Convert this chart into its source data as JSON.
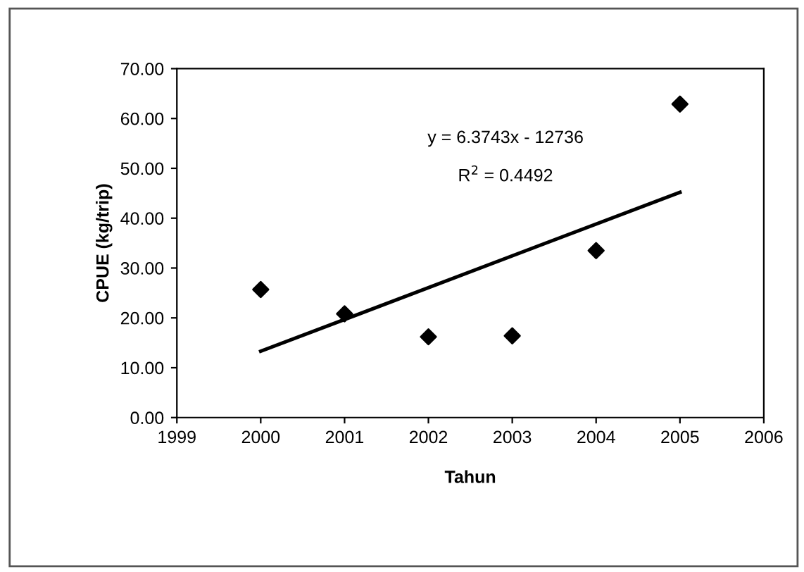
{
  "chart_data": {
    "type": "scatter",
    "xlabel": "Tahun",
    "ylabel": "CPUE (kg/trip)",
    "annotations": [
      "y = 6.3743x - 12736",
      "R$^{2}$ = 0.4492"
    ],
    "xlim": [
      1999,
      2006
    ],
    "xticks": [
      1999,
      2000,
      2001,
      2002,
      2003,
      2004,
      2005,
      2006
    ],
    "ylim": [
      0,
      70
    ],
    "yticks": [
      {
        "value": 0,
        "label": "0.00"
      },
      {
        "value": 10,
        "label": "10.00"
      },
      {
        "value": 20,
        "label": "20.00"
      },
      {
        "value": 30,
        "label": "30.00"
      },
      {
        "value": 40,
        "label": "40.00"
      },
      {
        "value": 50,
        "label": "50.00"
      },
      {
        "value": 60,
        "label": "60.00"
      },
      {
        "value": 70,
        "label": "70.00"
      }
    ],
    "grid": false,
    "legend": false,
    "series": [
      {
        "color": "#000000",
        "marker": "diamond",
        "x": [
          2000,
          2001,
          2002,
          2003,
          2004,
          2005
        ],
        "values": [
          25.7,
          20.8,
          16.2,
          16.4,
          33.5,
          62.9
        ]
      },
      {
        "type": "line",
        "color": "#000000",
        "marker": "none",
        "line_style": "solid",
        "x": [
          2000,
          2005
        ],
        "values": [
          13.3,
          45.2
        ]
      }
    ]
  }
}
